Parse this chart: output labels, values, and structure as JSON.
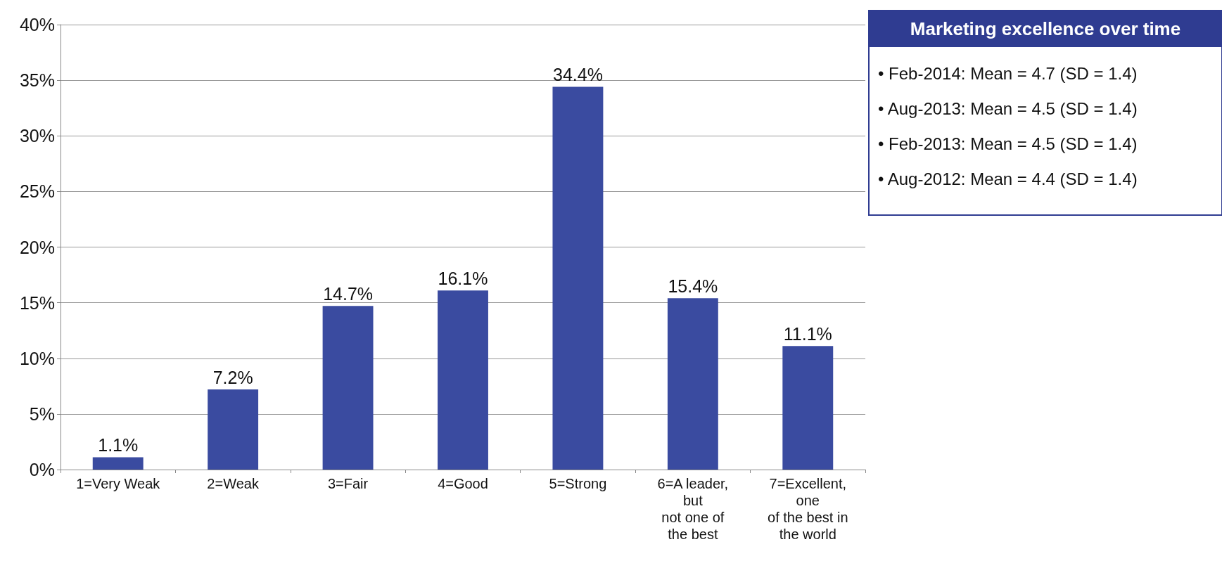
{
  "chart_data": [
    {
      "type": "bar",
      "categories": [
        "1=Very Weak",
        "2=Weak",
        "3=Fair",
        "4=Good",
        "5=Strong",
        "6=A leader,\nbut\nnot one of\nthe best",
        "7=Excellent,\none\nof the best in\nthe world"
      ],
      "values": [
        1.1,
        7.2,
        14.7,
        16.1,
        34.4,
        15.4,
        11.1
      ],
      "value_labels": [
        "1.1%",
        "7.2%",
        "14.7%",
        "16.1%",
        "34.4%",
        "15.4%",
        "11.1%"
      ],
      "color": "#3a4ba0",
      "ylim": [
        0,
        40
      ],
      "yticks": [
        {
          "value": 0,
          "label": "0%"
        },
        {
          "value": 5,
          "label": "5%"
        },
        {
          "value": 10,
          "label": "10%"
        },
        {
          "value": 15,
          "label": "15%"
        },
        {
          "value": 20,
          "label": "20%"
        },
        {
          "value": 25,
          "label": "25%"
        },
        {
          "value": 30,
          "label": "30%"
        },
        {
          "value": 35,
          "label": "35%"
        },
        {
          "value": 40,
          "label": "40%"
        }
      ],
      "grid": "y"
    },
    {
      "type": "other",
      "title": "Marketing excellence over time",
      "annotations": [
        "• Feb-2014: Mean = 4.7 (SD = 1.4)",
        "• Aug-2013: Mean = 4.5 (SD = 1.4)",
        "• Feb-2013: Mean = 4.5 (SD = 1.4)",
        "• Aug-2012: Mean = 4.4 (SD = 1.4)"
      ]
    }
  ]
}
